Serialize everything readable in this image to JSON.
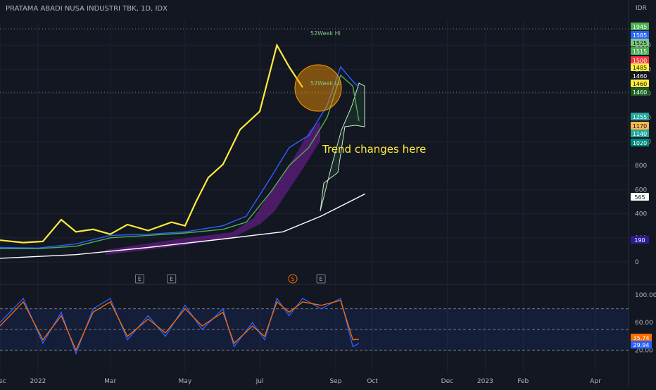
{
  "header": {
    "symbol": "PRATAMA ABADI NUSA INDUSTRI TBK, 1D, IDX",
    "currency": "IDR"
  },
  "colors": {
    "background": "#131722",
    "grid": "#1f2330",
    "text": "#b2b5be",
    "yellow": "#ffeb3b",
    "blue": "#2962ff",
    "green": "#4caf50",
    "purple": "#7b1fa2",
    "white": "#e0e0e0",
    "stoch_k": "#2962ff",
    "stoch_d": "#ff6d00",
    "circle": "#ff9800"
  },
  "annotations": {
    "trend_note": "Trend changes here",
    "week_hi": "52Week Hi",
    "week_lo": "52Week Lo"
  },
  "event_markers": [
    {
      "label": "E",
      "x": "2022-03-25"
    },
    {
      "label": "E",
      "x": "2022-04-20"
    },
    {
      "label": "S",
      "x": "2022-07-28"
    },
    {
      "label": "E",
      "x": "2022-08-20"
    }
  ],
  "chart_data": [
    {
      "type": "line",
      "title": "PRATAMA ABADI NUSA INDUSTRI TBK, 1D, IDX",
      "y_unit": "IDR",
      "ylim": [
        0,
        2000
      ],
      "y_ticks": [
        0,
        200,
        400,
        600,
        800,
        1000,
        1200,
        1400,
        1600,
        1800
      ],
      "x_ticks": [
        "Dec",
        "2022",
        "Mar",
        "May",
        "Jul",
        "Sep",
        "Oct",
        "Dec",
        "2023",
        "Feb",
        "Apr"
      ],
      "price_badges": [
        {
          "value": "1945",
          "color": "#4caf50"
        },
        {
          "value": "1585",
          "color": "#2962ff"
        },
        {
          "value": "1525",
          "color": "#81c784"
        },
        {
          "value": "1515",
          "color": "#4caf50"
        },
        {
          "value": "1500",
          "color": "#f23645"
        },
        {
          "value": "1485",
          "color": "#ffeb3b"
        },
        {
          "value": "1460",
          "color": "#131722"
        },
        {
          "value": "1460",
          "color": "#ffeb3b"
        },
        {
          "value": "1460",
          "color": "#1b5e20"
        },
        {
          "value": "1255",
          "color": "#26a69a"
        },
        {
          "value": "1170",
          "color": "#ffb74d"
        },
        {
          "value": "1140",
          "color": "#26a69a"
        },
        {
          "value": "1020",
          "color": "#00897b"
        },
        {
          "value": "565",
          "color": "#ffffff"
        },
        {
          "value": "190",
          "color": "#311b92"
        }
      ],
      "series": [
        {
          "name": "",
          "color": "#ffeb3b",
          "points": [
            [
              "2021-12-01",
              180
            ],
            [
              "2021-12-20",
              160
            ],
            [
              "2022-01-05",
              170
            ],
            [
              "2022-01-20",
              350
            ],
            [
              "2022-02-01",
              250
            ],
            [
              "2022-02-15",
              270
            ],
            [
              "2022-03-01",
              230
            ],
            [
              "2022-03-15",
              310
            ],
            [
              "2022-04-01",
              260
            ],
            [
              "2022-04-20",
              330
            ],
            [
              "2022-05-01",
              300
            ],
            [
              "2022-05-10",
              500
            ],
            [
              "2022-05-20",
              700
            ],
            [
              "2022-06-01",
              810
            ],
            [
              "2022-06-15",
              1100
            ],
            [
              "2022-07-01",
              1250
            ],
            [
              "2022-07-15",
              1800
            ],
            [
              "2022-07-25",
              1620
            ],
            [
              "2022-08-05",
              1450
            ]
          ]
        },
        {
          "name": "",
          "color": "#2962ff",
          "points": [
            [
              "2021-12-01",
              120
            ],
            [
              "2022-01-01",
              115
            ],
            [
              "2022-02-01",
              150
            ],
            [
              "2022-03-01",
              220
            ],
            [
              "2022-04-01",
              230
            ],
            [
              "2022-05-01",
              250
            ],
            [
              "2022-06-01",
              300
            ],
            [
              "2022-06-20",
              380
            ],
            [
              "2022-07-10",
              700
            ],
            [
              "2022-07-25",
              950
            ],
            [
              "2022-08-10",
              1050
            ],
            [
              "2022-08-25",
              1300
            ],
            [
              "2022-09-05",
              1620
            ],
            [
              "2022-09-15",
              1500
            ],
            [
              "2022-09-20",
              1450
            ]
          ]
        },
        {
          "name": "",
          "color": "#4caf50",
          "points": [
            [
              "2021-12-01",
              110
            ],
            [
              "2022-01-01",
              110
            ],
            [
              "2022-02-01",
              130
            ],
            [
              "2022-03-01",
              200
            ],
            [
              "2022-04-01",
              220
            ],
            [
              "2022-05-01",
              240
            ],
            [
              "2022-06-01",
              270
            ],
            [
              "2022-06-20",
              330
            ],
            [
              "2022-07-10",
              580
            ],
            [
              "2022-07-25",
              800
            ],
            [
              "2022-08-10",
              950
            ],
            [
              "2022-08-25",
              1200
            ],
            [
              "2022-09-05",
              1550
            ],
            [
              "2022-09-15",
              1460
            ],
            [
              "2022-09-20",
              1170
            ]
          ]
        },
        {
          "name": "",
          "color": "#ffffff",
          "points": [
            [
              "2021-12-01",
              30
            ],
            [
              "2022-02-01",
              60
            ],
            [
              "2022-04-01",
              120
            ],
            [
              "2022-06-01",
              190
            ],
            [
              "2022-07-20",
              250
            ],
            [
              "2022-08-20",
              380
            ],
            [
              "2022-09-25",
              565
            ]
          ]
        }
      ]
    },
    {
      "type": "line",
      "title": "",
      "ylim": [
        0,
        100
      ],
      "y_ticks": [
        20,
        60,
        100
      ],
      "band": [
        20,
        80
      ],
      "last_values": [
        {
          "value": "35.74",
          "color": "#ff6d00"
        },
        {
          "value": "29.94",
          "color": "#2962ff"
        }
      ],
      "series": [
        {
          "name": "",
          "color": "#2962ff",
          "points": [
            [
              "2021-12-01",
              60
            ],
            [
              "2021-12-20",
              95
            ],
            [
              "2022-01-05",
              30
            ],
            [
              "2022-01-20",
              75
            ],
            [
              "2022-02-01",
              15
            ],
            [
              "2022-02-15",
              80
            ],
            [
              "2022-03-01",
              95
            ],
            [
              "2022-03-15",
              35
            ],
            [
              "2022-04-01",
              70
            ],
            [
              "2022-04-15",
              40
            ],
            [
              "2022-05-01",
              85
            ],
            [
              "2022-05-15",
              50
            ],
            [
              "2022-06-01",
              80
            ],
            [
              "2022-06-10",
              25
            ],
            [
              "2022-06-25",
              60
            ],
            [
              "2022-07-05",
              35
            ],
            [
              "2022-07-15",
              95
            ],
            [
              "2022-07-25",
              70
            ],
            [
              "2022-08-05",
              95
            ],
            [
              "2022-08-20",
              80
            ],
            [
              "2022-09-05",
              95
            ],
            [
              "2022-09-15",
              25
            ],
            [
              "2022-09-20",
              29.94
            ]
          ]
        },
        {
          "name": "",
          "color": "#ff6d00",
          "points": [
            [
              "2021-12-01",
              55
            ],
            [
              "2021-12-20",
              90
            ],
            [
              "2022-01-05",
              35
            ],
            [
              "2022-01-20",
              70
            ],
            [
              "2022-02-01",
              20
            ],
            [
              "2022-02-15",
              75
            ],
            [
              "2022-03-01",
              90
            ],
            [
              "2022-03-15",
              40
            ],
            [
              "2022-04-01",
              65
            ],
            [
              "2022-04-15",
              45
            ],
            [
              "2022-05-01",
              80
            ],
            [
              "2022-05-15",
              55
            ],
            [
              "2022-06-01",
              75
            ],
            [
              "2022-06-10",
              30
            ],
            [
              "2022-06-25",
              55
            ],
            [
              "2022-07-05",
              40
            ],
            [
              "2022-07-15",
              90
            ],
            [
              "2022-07-25",
              75
            ],
            [
              "2022-08-05",
              90
            ],
            [
              "2022-08-20",
              85
            ],
            [
              "2022-09-05",
              92
            ],
            [
              "2022-09-15",
              35
            ],
            [
              "2022-09-20",
              35.74
            ]
          ]
        }
      ]
    }
  ]
}
